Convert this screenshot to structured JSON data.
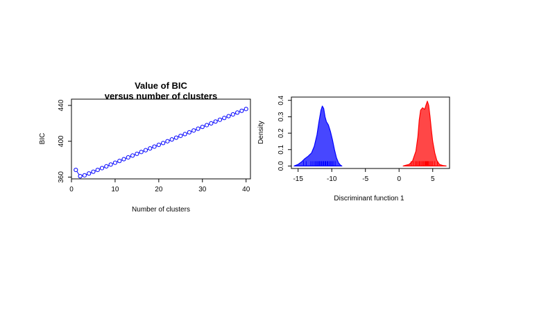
{
  "chart_data": [
    {
      "type": "line",
      "title_line1": "Value of BIC",
      "title_line2": "versus number of clusters",
      "xlabel": "Number of clusters",
      "ylabel": "BIC",
      "xlim": [
        0,
        41
      ],
      "ylim": [
        358,
        447
      ],
      "xticks": [
        "0",
        "10",
        "20",
        "30",
        "40"
      ],
      "yticks": [
        "360",
        "400",
        "440"
      ],
      "series": [
        {
          "color": "#0000ff",
          "marker": "open-circle",
          "x": [
            1,
            2,
            3,
            4,
            5,
            6,
            7,
            8,
            9,
            10,
            11,
            12,
            13,
            14,
            15,
            16,
            17,
            18,
            19,
            20,
            21,
            22,
            23,
            24,
            25,
            26,
            27,
            28,
            29,
            30,
            31,
            32,
            33,
            34,
            35,
            36,
            37,
            38,
            39,
            40
          ],
          "y": [
            368,
            361,
            362,
            364,
            366,
            368,
            370,
            372,
            374,
            376,
            378,
            380,
            382,
            384,
            386,
            388,
            390,
            392,
            394,
            396,
            398,
            400,
            402,
            404,
            406,
            408,
            410,
            412,
            414,
            416,
            418,
            420,
            422,
            424,
            426,
            428,
            430,
            432,
            434,
            436
          ]
        }
      ]
    },
    {
      "type": "area",
      "xlabel": "Discriminant function 1",
      "ylabel": "Density",
      "xlim": [
        -16,
        7.5
      ],
      "ylim": [
        -0.015,
        0.42
      ],
      "xticks": [
        "-15",
        "-10",
        "-5",
        "0",
        "5"
      ],
      "yticks": [
        "0.0",
        "0.1",
        "0.2",
        "0.3",
        "0.4"
      ],
      "series": [
        {
          "color": "#0000ff",
          "fill": "rgba(0,0,255,0.72)",
          "x": [
            -15.6,
            -15.0,
            -14.5,
            -14.0,
            -13.5,
            -13.0,
            -12.6,
            -12.2,
            -11.9,
            -11.6,
            -11.4,
            -11.2,
            -11.0,
            -10.8,
            -10.5,
            -10.2,
            -9.9,
            -9.6,
            -9.3,
            -9.0,
            -8.7,
            -8.5
          ],
          "y": [
            0.0,
            0.01,
            0.025,
            0.045,
            0.06,
            0.08,
            0.12,
            0.19,
            0.27,
            0.34,
            0.365,
            0.35,
            0.3,
            0.27,
            0.25,
            0.21,
            0.16,
            0.1,
            0.05,
            0.02,
            0.005,
            0.0
          ],
          "rug": [
            -14.2,
            -13.8,
            -13.1,
            -12.8,
            -12.5,
            -12.3,
            -12.1,
            -11.9,
            -11.8,
            -11.6,
            -11.5,
            -11.3,
            -11.2,
            -11.0,
            -10.9,
            -10.7,
            -10.6,
            -10.4,
            -10.2,
            -10.0,
            -9.8,
            -9.5
          ]
        },
        {
          "color": "#ff0000",
          "fill": "rgba(255,0,0,0.72)",
          "x": [
            0.6,
            1.0,
            1.5,
            2.0,
            2.5,
            2.8,
            3.0,
            3.2,
            3.5,
            3.8,
            4.0,
            4.2,
            4.4,
            4.6,
            4.8,
            5.0,
            5.3,
            5.6,
            6.0,
            6.5,
            7.0
          ],
          "y": [
            0.0,
            0.005,
            0.01,
            0.03,
            0.09,
            0.18,
            0.28,
            0.34,
            0.355,
            0.345,
            0.37,
            0.395,
            0.37,
            0.3,
            0.22,
            0.15,
            0.08,
            0.035,
            0.01,
            0.003,
            0.0
          ],
          "rug": [
            1.8,
            2.1,
            2.4,
            2.6,
            2.8,
            3.0,
            3.1,
            3.3,
            3.5,
            3.6,
            3.8,
            3.9,
            4.0,
            4.1,
            4.2,
            4.3,
            4.4,
            4.6,
            4.8,
            5.0,
            5.3,
            5.7
          ]
        }
      ]
    }
  ]
}
